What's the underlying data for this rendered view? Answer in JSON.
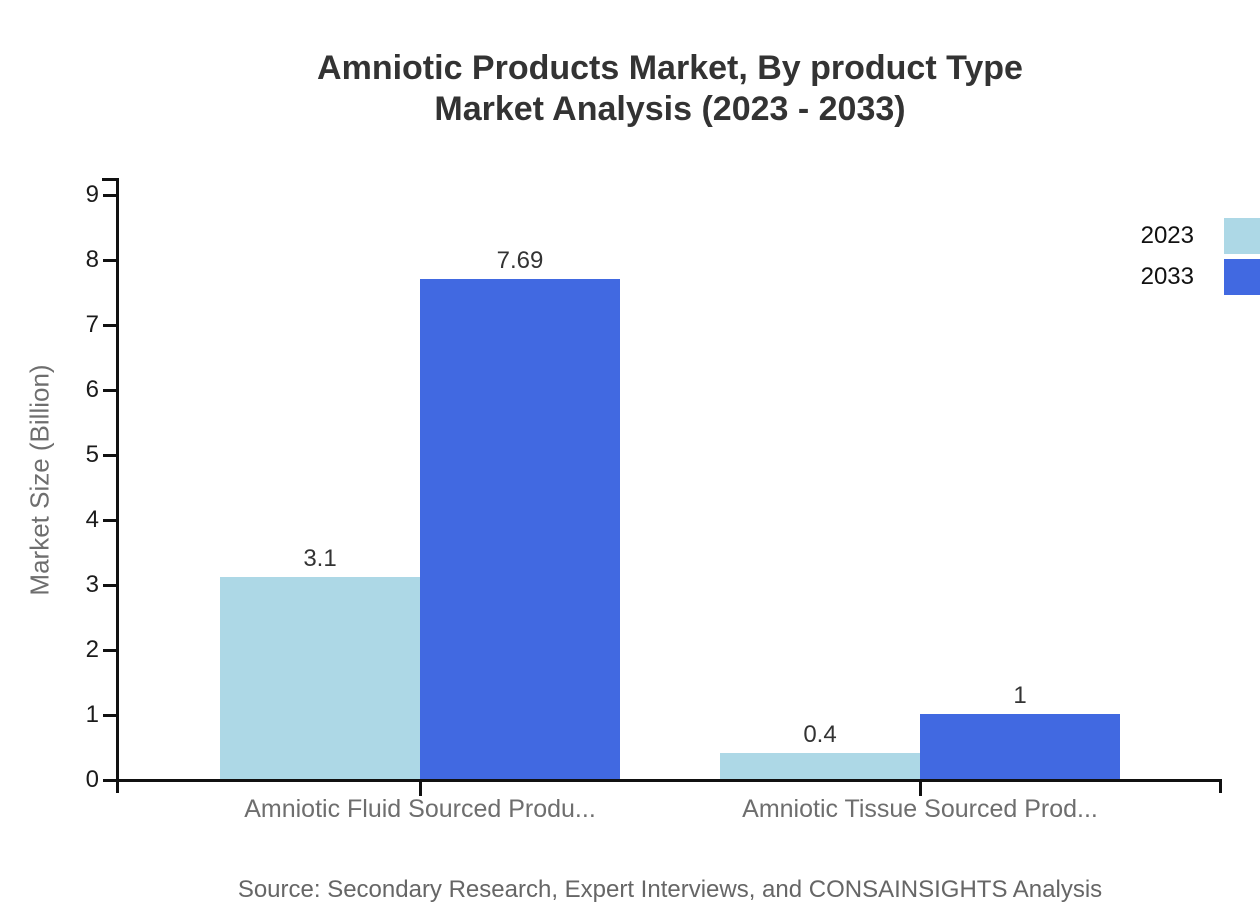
{
  "title": {
    "line1": "Amniotic Products Market, By product Type",
    "line2": "Market Analysis (2023 - 2033)"
  },
  "y_axis": {
    "title": "Market Size (Billion)",
    "ticks": [
      "0",
      "1",
      "2",
      "3",
      "4",
      "5",
      "6",
      "7",
      "8",
      "9"
    ]
  },
  "legend": {
    "items": [
      {
        "label": "2023",
        "color": "#ADD8E6"
      },
      {
        "label": "2033",
        "color": "#4169E1"
      }
    ]
  },
  "source": "Source: Secondary Research, Expert Interviews, and CONSAINSIGHTS Analysis",
  "chart_data": {
    "type": "bar",
    "title": "Amniotic Products Market, By product Type Market Analysis (2023 - 2033)",
    "categories": [
      "Amniotic Fluid Sourced Produ...",
      "Amniotic Tissue Sourced Prod..."
    ],
    "series": [
      {
        "name": "2023",
        "color": "#ADD8E6",
        "values": [
          3.1,
          0.4
        ],
        "value_labels": [
          "3.1",
          "0.4"
        ]
      },
      {
        "name": "2033",
        "color": "#4169E1",
        "values": [
          7.69,
          1
        ],
        "value_labels": [
          "7.69",
          "1"
        ]
      }
    ],
    "xlabel": "",
    "ylabel": "Market Size (Billion)",
    "ylim": [
      0,
      9
    ],
    "y_tick_step": 1,
    "grid": false,
    "legend_position": "top-right",
    "bar_value_labels": true
  }
}
